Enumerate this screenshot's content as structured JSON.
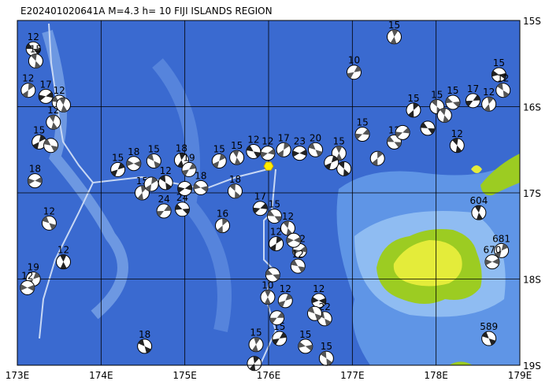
{
  "title": "E202401020641A  M=4.3  h= 10  FIJI ISLANDS REGION",
  "lon_ticks": [
    {
      "value": 173,
      "label": "173E"
    },
    {
      "value": 174,
      "label": "174E"
    },
    {
      "value": 175,
      "label": "175E"
    },
    {
      "value": 176,
      "label": "176E"
    },
    {
      "value": 177,
      "label": "177E"
    },
    {
      "value": 178,
      "label": "178E"
    },
    {
      "value": 179,
      "label": "179E"
    }
  ],
  "lat_ticks": [
    {
      "value": 15,
      "label": "15S"
    },
    {
      "value": 16,
      "label": "16S"
    },
    {
      "value": 17,
      "label": "17S"
    },
    {
      "value": 18,
      "label": "18S"
    },
    {
      "value": 19,
      "label": "19S"
    }
  ],
  "lonlim": [
    173,
    179
  ],
  "latlim": [
    15,
    19
  ],
  "main_event": {
    "lon": 176.0,
    "lat": 16.69
  },
  "events": [
    {
      "lon": 173.19,
      "lat": 15.33,
      "label": "12"
    },
    {
      "lon": 173.22,
      "lat": 15.47,
      "label": "15"
    },
    {
      "lon": 173.13,
      "lat": 15.81,
      "label": "12"
    },
    {
      "lon": 173.34,
      "lat": 15.88,
      "label": "17"
    },
    {
      "lon": 173.5,
      "lat": 15.95,
      "label": "12"
    },
    {
      "lon": 173.43,
      "lat": 16.18,
      "label": "12"
    },
    {
      "lon": 173.26,
      "lat": 16.41,
      "label": "15"
    },
    {
      "lon": 173.21,
      "lat": 16.86,
      "label": "18"
    },
    {
      "lon": 173.38,
      "lat": 17.35,
      "label": "12"
    },
    {
      "lon": 173.55,
      "lat": 17.8,
      "label": "12"
    },
    {
      "lon": 173.19,
      "lat": 18.0,
      "label": "19"
    },
    {
      "lon": 173.12,
      "lat": 18.1,
      "label": "12"
    },
    {
      "lon": 174.52,
      "lat": 18.78,
      "label": "18"
    },
    {
      "lon": 177.5,
      "lat": 15.19,
      "label": "15"
    },
    {
      "lon": 177.02,
      "lat": 15.6,
      "label": "10"
    },
    {
      "lon": 178.75,
      "lat": 15.63,
      "label": "15"
    },
    {
      "lon": 178.8,
      "lat": 15.81,
      "label": "12"
    },
    {
      "lon": 178.63,
      "lat": 15.97,
      "label": "12"
    },
    {
      "lon": 178.44,
      "lat": 15.93,
      "label": "17"
    },
    {
      "lon": 178.2,
      "lat": 15.95,
      "label": "15"
    },
    {
      "lon": 178.01,
      "lat": 16.0,
      "label": "15"
    },
    {
      "lon": 177.73,
      "lat": 16.04,
      "label": "15"
    },
    {
      "lon": 177.12,
      "lat": 16.32,
      "label": "15"
    },
    {
      "lon": 177.5,
      "lat": 16.41,
      "label": "12"
    },
    {
      "lon": 178.25,
      "lat": 16.45,
      "label": "12"
    },
    {
      "lon": 176.18,
      "lat": 16.5,
      "label": "17"
    },
    {
      "lon": 175.99,
      "lat": 16.54,
      "label": "12"
    },
    {
      "lon": 175.82,
      "lat": 16.52,
      "label": "12"
    },
    {
      "lon": 175.62,
      "lat": 16.59,
      "label": "15"
    },
    {
      "lon": 175.41,
      "lat": 16.63,
      "label": "15"
    },
    {
      "lon": 176.37,
      "lat": 16.54,
      "label": "23"
    },
    {
      "lon": 176.56,
      "lat": 16.5,
      "label": "20"
    },
    {
      "lon": 176.84,
      "lat": 16.54,
      "label": "15"
    },
    {
      "lon": 174.2,
      "lat": 16.73,
      "label": "15"
    },
    {
      "lon": 174.39,
      "lat": 16.66,
      "label": "18"
    },
    {
      "lon": 174.63,
      "lat": 16.63,
      "label": "15"
    },
    {
      "lon": 174.96,
      "lat": 16.62,
      "label": "18"
    },
    {
      "lon": 175.05,
      "lat": 16.73,
      "label": "19"
    },
    {
      "lon": 175.19,
      "lat": 16.94,
      "label": "18"
    },
    {
      "lon": 174.77,
      "lat": 16.88,
      "label": "12"
    },
    {
      "lon": 174.49,
      "lat": 17.0,
      "label": "15"
    },
    {
      "lon": 174.75,
      "lat": 17.21,
      "label": "24"
    },
    {
      "lon": 174.97,
      "lat": 17.19,
      "label": "24"
    },
    {
      "lon": 175.6,
      "lat": 16.98,
      "label": "18"
    },
    {
      "lon": 175.45,
      "lat": 17.38,
      "label": "16"
    },
    {
      "lon": 175.9,
      "lat": 17.18,
      "label": "17"
    },
    {
      "lon": 176.07,
      "lat": 17.27,
      "label": "15"
    },
    {
      "lon": 176.23,
      "lat": 17.41,
      "label": "12"
    },
    {
      "lon": 176.09,
      "lat": 17.59,
      "label": "12"
    },
    {
      "lon": 176.37,
      "lat": 17.67,
      "label": "12"
    },
    {
      "lon": 176.35,
      "lat": 17.85,
      "label": "12"
    },
    {
      "lon": 178.51,
      "lat": 17.23,
      "label": "604"
    },
    {
      "lon": 178.78,
      "lat": 17.67,
      "label": "681"
    },
    {
      "lon": 178.67,
      "lat": 17.8,
      "label": "670"
    },
    {
      "lon": 178.63,
      "lat": 18.69,
      "label": "589"
    },
    {
      "lon": 175.99,
      "lat": 18.21,
      "label": "10"
    },
    {
      "lon": 176.2,
      "lat": 18.25,
      "label": "12"
    },
    {
      "lon": 176.6,
      "lat": 18.25,
      "label": "12"
    },
    {
      "lon": 176.67,
      "lat": 18.46,
      "label": "22"
    },
    {
      "lon": 175.85,
      "lat": 18.76,
      "label": "15"
    },
    {
      "lon": 176.13,
      "lat": 18.69,
      "label": "15"
    },
    {
      "lon": 176.44,
      "lat": 18.78,
      "label": "15"
    },
    {
      "lon": 176.69,
      "lat": 18.92,
      "label": "15"
    },
    {
      "lon": 175.83,
      "lat": 18.98,
      "label": null
    },
    {
      "lon": 176.1,
      "lat": 18.45,
      "label": null
    },
    {
      "lon": 176.05,
      "lat": 17.95,
      "label": null
    },
    {
      "lon": 176.9,
      "lat": 16.72,
      "label": null
    },
    {
      "lon": 177.3,
      "lat": 16.6,
      "label": null
    },
    {
      "lon": 177.6,
      "lat": 16.3,
      "label": null
    },
    {
      "lon": 177.9,
      "lat": 16.25,
      "label": null
    },
    {
      "lon": 178.1,
      "lat": 16.1,
      "label": null
    },
    {
      "lon": 174.6,
      "lat": 16.9,
      "label": null
    },
    {
      "lon": 175.0,
      "lat": 16.95,
      "label": null
    },
    {
      "lon": 173.4,
      "lat": 16.45,
      "label": null
    },
    {
      "lon": 173.55,
      "lat": 15.98,
      "label": null
    },
    {
      "lon": 176.75,
      "lat": 16.65,
      "label": null
    },
    {
      "lon": 176.3,
      "lat": 17.55,
      "label": null
    },
    {
      "lon": 176.55,
      "lat": 18.4,
      "label": null
    }
  ]
}
